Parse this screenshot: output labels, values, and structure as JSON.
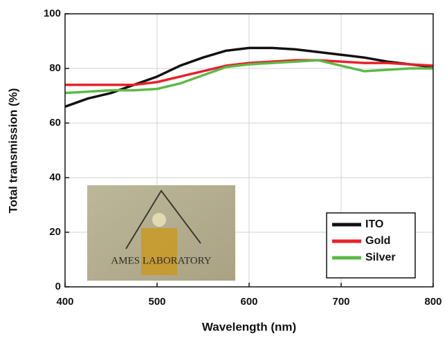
{
  "chart_data": {
    "type": "line",
    "x_label": "Wavelength (nm)",
    "y_label": "Total transmission (%)",
    "inset_text": "AMES LABORATORY",
    "x": [
      400,
      425,
      450,
      475,
      500,
      525,
      550,
      575,
      600,
      625,
      650,
      675,
      700,
      725,
      750,
      775,
      800
    ],
    "series": [
      {
        "name": "ITO",
        "color": "#111111",
        "values": [
          66,
          69,
          71,
          74,
          77,
          81,
          84,
          86.5,
          87.5,
          87.5,
          87,
          86,
          85,
          84,
          82.5,
          81.5,
          80.5
        ]
      },
      {
        "name": "Gold",
        "color": "#e8212a",
        "values": [
          74,
          74,
          74,
          74,
          75,
          77,
          79,
          81,
          82,
          82.5,
          83,
          83,
          82.5,
          82,
          82,
          81.5,
          81
        ]
      },
      {
        "name": "Silver",
        "color": "#5cb946",
        "values": [
          71,
          71.5,
          72,
          72,
          72.5,
          74.5,
          77.5,
          80.5,
          81.5,
          82,
          82.5,
          83,
          81,
          79,
          79.5,
          80,
          80
        ]
      }
    ],
    "xlim": [
      400,
      800
    ],
    "xticks": [
      400,
      500,
      600,
      700,
      800
    ],
    "ylim": [
      0,
      100
    ],
    "yticks": [
      0,
      20,
      40,
      60,
      80,
      100
    ],
    "grid": true,
    "legend": "lower right"
  }
}
